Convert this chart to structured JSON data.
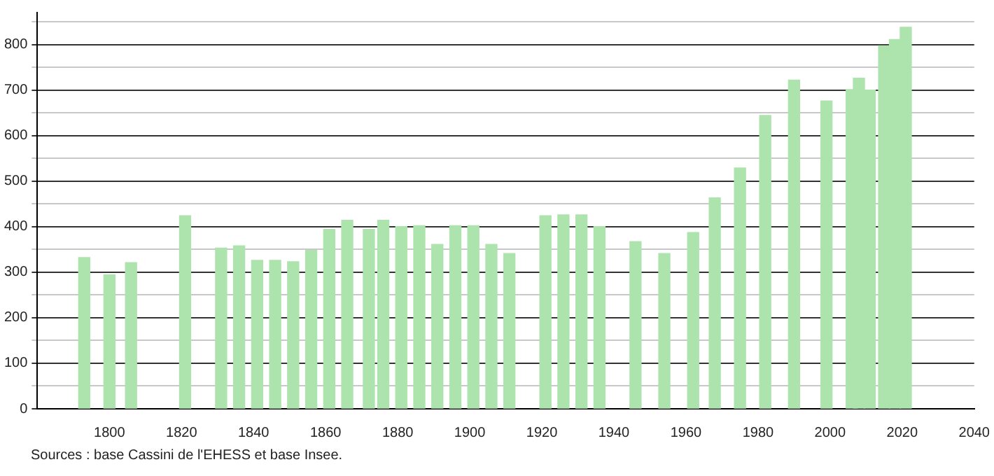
{
  "chart_data": {
    "type": "bar",
    "x": [
      1793,
      1800,
      1806,
      1821,
      1831,
      1836,
      1841,
      1846,
      1851,
      1856,
      1861,
      1866,
      1872,
      1876,
      1881,
      1886,
      1891,
      1896,
      1901,
      1906,
      1911,
      1921,
      1926,
      1931,
      1936,
      1946,
      1954,
      1962,
      1968,
      1975,
      1982,
      1990,
      1999,
      2006,
      2008,
      2011,
      2015,
      2018,
      2021
    ],
    "values": [
      332,
      294,
      321,
      424,
      353,
      358,
      326,
      326,
      323,
      348,
      394,
      414,
      394,
      414,
      400,
      402,
      361,
      402,
      402,
      361,
      341,
      424,
      426,
      426,
      400,
      367,
      341,
      387,
      463,
      529,
      644,
      722,
      676,
      701,
      726,
      700,
      797,
      811,
      838
    ],
    "color": "#ade3ad",
    "xlim": [
      1780,
      2040
    ],
    "xticks": [
      1800,
      1820,
      1840,
      1860,
      1880,
      1900,
      1920,
      1940,
      1960,
      1980,
      2000,
      2020,
      2040
    ],
    "ylim": [
      0,
      870
    ],
    "yticks": [
      0,
      {
        "value": 50,
        "label": null
      },
      100,
      {
        "value": 150,
        "label": null
      },
      200,
      {
        "value": 250,
        "label": null
      },
      300,
      {
        "value": 350,
        "label": null
      },
      400,
      {
        "value": 450,
        "label": null
      },
      500,
      {
        "value": 550,
        "label": null
      },
      600,
      {
        "value": 650,
        "label": null
      },
      700,
      {
        "value": 750,
        "label": null
      },
      800,
      {
        "value": 850,
        "label": null
      }
    ],
    "grid": "y",
    "annotations": [
      "Sources : base Cassini de l'EHESS et base Insee."
    ]
  }
}
